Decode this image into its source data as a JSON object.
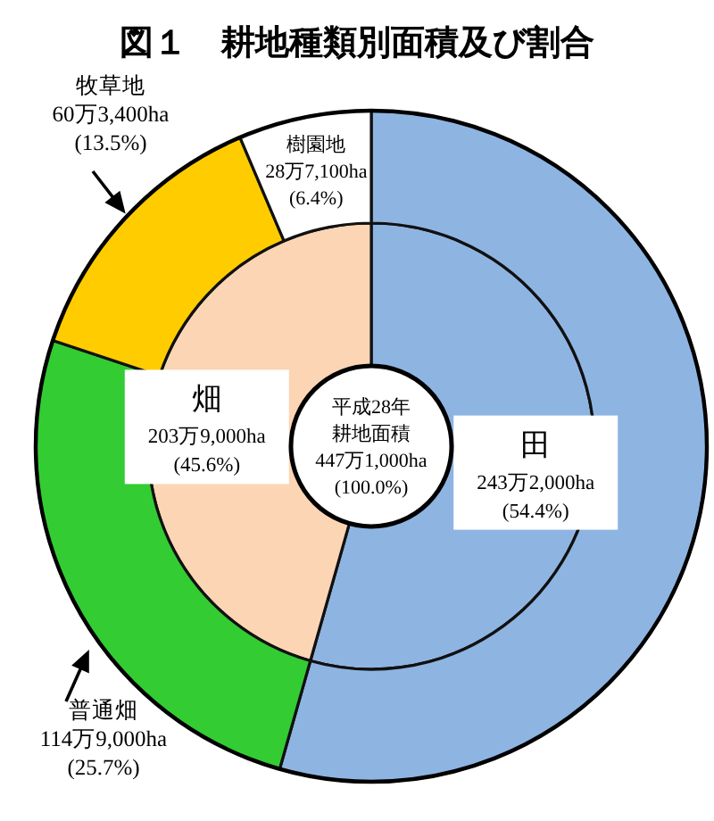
{
  "chart_data": [
    {
      "type": "donut",
      "title": "図１　耕地種類別面積及び割合",
      "categories": [
        "田",
        "畑"
      ],
      "values": [
        54.4,
        45.6
      ],
      "colors": [
        "#8eb4e2",
        "#fcd5b5"
      ],
      "value_labels": [
        "243万2,000ha\n(54.4%)",
        "203万9,000ha\n(45.6%)"
      ],
      "annotations": [
        "平成28年",
        "耕地面積",
        "447万1,000ha",
        "(100.0%)"
      ]
    },
    {
      "type": "donut",
      "categories": [
        null,
        "普通畑",
        "牧草地",
        "樹園地"
      ],
      "values": [
        54.4,
        25.7,
        13.5,
        6.4
      ],
      "colors": [
        "#8eb4e2",
        "#33cc33",
        "#ffcc00",
        "#ffffff"
      ],
      "value_labels": [
        null,
        "114万9,000ha\n(25.7%)",
        "60万3,400ha\n(13.5%)",
        "28万7,100ha\n(6.4%)"
      ]
    }
  ]
}
